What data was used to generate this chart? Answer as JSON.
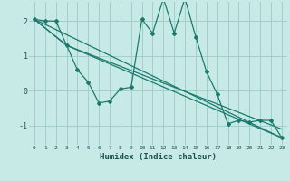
{
  "xlabel": "Humidex (Indice chaleur)",
  "ylabel": "",
  "bg_color": "#c8eae6",
  "grid_color": "#a0d0cc",
  "line_color": "#1a7a6e",
  "xlim": [
    -0.5,
    23.5
  ],
  "ylim": [
    -1.55,
    2.55
  ],
  "xticks": [
    0,
    1,
    2,
    3,
    4,
    5,
    6,
    7,
    8,
    9,
    10,
    11,
    12,
    13,
    14,
    15,
    16,
    17,
    18,
    19,
    20,
    21,
    22,
    23
  ],
  "yticks": [
    -1,
    0,
    1,
    2
  ],
  "series_wiggly": {
    "x": [
      0,
      1,
      2,
      3,
      4,
      5,
      6,
      7,
      8,
      9,
      10,
      11,
      12,
      13,
      14,
      15,
      16,
      17,
      18,
      19,
      20,
      21,
      22,
      23
    ],
    "y": [
      2.05,
      2.0,
      2.0,
      1.3,
      0.6,
      0.25,
      -0.35,
      -0.3,
      0.05,
      0.1,
      2.05,
      1.65,
      2.65,
      1.65,
      2.65,
      1.55,
      0.55,
      -0.1,
      -0.95,
      -0.85,
      -0.9,
      -0.85,
      -0.85,
      -1.35
    ]
  },
  "line1": {
    "x": [
      0,
      23
    ],
    "y": [
      2.05,
      -1.35
    ]
  },
  "line2": {
    "x": [
      0,
      3,
      23
    ],
    "y": [
      2.05,
      1.3,
      -1.35
    ]
  },
  "line3": {
    "x": [
      0,
      3,
      23
    ],
    "y": [
      2.05,
      1.3,
      -1.1
    ]
  }
}
